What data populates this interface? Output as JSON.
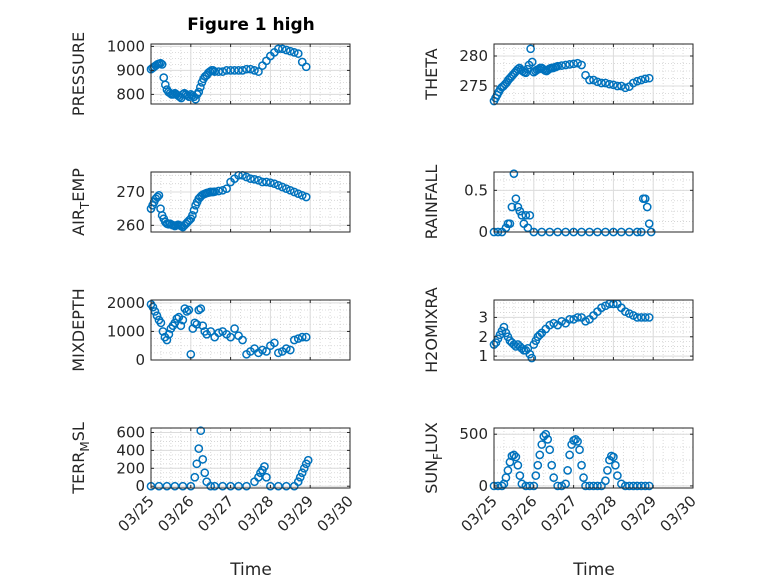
{
  "figure": {
    "title": "Figure 1 high",
    "xlabel": "Time",
    "x_ticks": [
      "03/25",
      "03/26",
      "03/27",
      "03/28",
      "03/29",
      "03/30"
    ],
    "marker_color": "#0072BD",
    "grid": true,
    "minor_grid": true
  },
  "chart_data": [
    {
      "type": "scatter",
      "title": "Figure 1 high",
      "ylabel": "PRESSURE",
      "xlim": [
        0,
        5
      ],
      "ylim": [
        760,
        1010
      ],
      "yticks": [
        800,
        900,
        1000
      ],
      "ytick_labels": [
        "800",
        "900",
        "1000"
      ],
      "x": [
        0.0,
        0.04,
        0.08,
        0.12,
        0.16,
        0.2,
        0.24,
        0.28,
        0.32,
        0.36,
        0.4,
        0.44,
        0.48,
        0.52,
        0.56,
        0.6,
        0.64,
        0.68,
        0.72,
        0.76,
        0.8,
        0.84,
        0.88,
        0.92,
        0.96,
        1.0,
        1.04,
        1.08,
        1.12,
        1.16,
        1.2,
        1.24,
        1.28,
        1.32,
        1.36,
        1.4,
        1.44,
        1.48,
        1.52,
        1.56,
        1.6,
        1.7,
        1.8,
        1.9,
        2.0,
        2.1,
        2.2,
        2.3,
        2.4,
        2.5,
        2.6,
        2.7,
        2.8,
        2.9,
        3.0,
        3.1,
        3.2,
        3.3,
        3.4,
        3.5,
        3.6,
        3.7,
        3.8,
        3.9
      ],
      "y": [
        905,
        910,
        915,
        920,
        925,
        928,
        930,
        925,
        870,
        840,
        820,
        810,
        805,
        800,
        800,
        805,
        800,
        795,
        790,
        785,
        800,
        805,
        800,
        795,
        790,
        800,
        795,
        790,
        780,
        800,
        810,
        830,
        850,
        865,
        875,
        880,
        890,
        895,
        900,
        900,
        895,
        895,
        895,
        900,
        900,
        900,
        900,
        900,
        905,
        905,
        900,
        895,
        920,
        940,
        960,
        975,
        990,
        990,
        985,
        980,
        975,
        970,
        935,
        915
      ]
    },
    {
      "type": "scatter",
      "ylabel": "THETA",
      "xlim": [
        0,
        5
      ],
      "ylim": [
        272,
        282
      ],
      "yticks": [
        275,
        280
      ],
      "ytick_labels": [
        "275",
        "280"
      ],
      "x": [
        0.0,
        0.04,
        0.08,
        0.12,
        0.16,
        0.2,
        0.24,
        0.28,
        0.32,
        0.36,
        0.4,
        0.44,
        0.48,
        0.52,
        0.56,
        0.6,
        0.64,
        0.68,
        0.72,
        0.76,
        0.8,
        0.84,
        0.88,
        0.92,
        0.96,
        1.0,
        1.04,
        1.08,
        1.12,
        1.16,
        1.2,
        1.24,
        1.28,
        1.32,
        1.36,
        1.4,
        1.44,
        1.48,
        1.52,
        1.56,
        1.6,
        1.7,
        1.8,
        1.9,
        2.0,
        2.1,
        2.2,
        2.3,
        2.4,
        2.5,
        2.6,
        2.7,
        2.8,
        2.9,
        3.0,
        3.1,
        3.2,
        3.3,
        3.4,
        3.5,
        3.6,
        3.7,
        3.8,
        3.9
      ],
      "y": [
        272.5,
        273,
        273.5,
        274,
        274.5,
        274.8,
        275,
        275.3,
        275.6,
        276,
        276.3,
        276.6,
        276.9,
        277.2,
        277.5,
        277.8,
        278,
        277.7,
        277.5,
        277.3,
        277.2,
        277.8,
        278.5,
        281.2,
        279,
        277.3,
        277.5,
        277.7,
        277.8,
        278,
        278,
        277.8,
        277.6,
        277.5,
        277.7,
        277.9,
        278,
        278,
        278.1,
        278.2,
        278.3,
        278.4,
        278.5,
        278.6,
        278.7,
        278.8,
        278.5,
        276.8,
        276,
        276,
        275.7,
        275.5,
        275.5,
        275.3,
        275.2,
        275,
        275,
        274.7,
        274.9,
        275.5,
        275.8,
        276,
        276.2,
        276.3
      ]
    },
    {
      "type": "scatter",
      "ylabel": "AIR_TEMP",
      "ylabel_display": [
        "AIR",
        "T",
        "EMP"
      ],
      "xlim": [
        0,
        5
      ],
      "ylim": [
        258,
        276
      ],
      "yticks": [
        260,
        270
      ],
      "ytick_labels": [
        "260",
        "270"
      ],
      "x": [
        0.0,
        0.04,
        0.08,
        0.12,
        0.16,
        0.2,
        0.24,
        0.28,
        0.32,
        0.36,
        0.4,
        0.44,
        0.48,
        0.52,
        0.56,
        0.6,
        0.64,
        0.68,
        0.72,
        0.76,
        0.8,
        0.84,
        0.88,
        0.92,
        0.96,
        1.0,
        1.04,
        1.08,
        1.12,
        1.16,
        1.2,
        1.24,
        1.28,
        1.32,
        1.36,
        1.4,
        1.44,
        1.48,
        1.52,
        1.56,
        1.6,
        1.7,
        1.8,
        1.9,
        2.0,
        2.1,
        2.2,
        2.3,
        2.4,
        2.5,
        2.6,
        2.7,
        2.8,
        2.9,
        3.0,
        3.1,
        3.2,
        3.3,
        3.4,
        3.5,
        3.6,
        3.7,
        3.8,
        3.9
      ],
      "y": [
        265,
        266,
        267,
        268,
        268.5,
        269,
        265,
        263,
        262,
        261,
        260.5,
        260.3,
        260.5,
        260.2,
        260,
        259.8,
        260,
        260.2,
        260,
        259.8,
        259.5,
        260,
        260.5,
        261,
        261.5,
        262,
        263,
        264.5,
        266,
        267,
        268,
        268.5,
        269,
        269.3,
        269.5,
        269.7,
        269.8,
        270,
        270,
        270,
        270.1,
        270.3,
        270.5,
        271,
        273,
        274,
        275,
        275,
        274.5,
        274,
        273.8,
        273.5,
        273,
        273,
        272.8,
        272.5,
        272,
        271.5,
        271,
        270.5,
        270,
        269.5,
        269,
        268.5
      ]
    },
    {
      "type": "scatter",
      "ylabel": "RAINFALL",
      "xlim": [
        0,
        5
      ],
      "ylim": [
        0,
        0.72
      ],
      "yticks": [
        0,
        0.5
      ],
      "ytick_labels": [
        "0",
        "0.5"
      ],
      "x": [
        0.0,
        0.1,
        0.2,
        0.3,
        0.35,
        0.4,
        0.45,
        0.5,
        0.55,
        0.6,
        0.65,
        0.7,
        0.75,
        0.8,
        0.85,
        0.9,
        1.0,
        1.2,
        1.4,
        1.6,
        1.8,
        2.0,
        2.2,
        2.4,
        2.6,
        2.8,
        3.0,
        3.2,
        3.4,
        3.6,
        3.7,
        3.75,
        3.8,
        3.85,
        3.9,
        3.95
      ],
      "y": [
        0,
        0,
        0,
        0.05,
        0.1,
        0.1,
        0.3,
        0.7,
        0.4,
        0.3,
        0.25,
        0.2,
        0.1,
        0.2,
        0.05,
        0.2,
        0,
        0,
        0,
        0,
        0,
        0,
        0,
        0,
        0,
        0,
        0,
        0,
        0,
        0,
        0,
        0.4,
        0.4,
        0.3,
        0.1,
        0
      ]
    },
    {
      "type": "scatter",
      "ylabel": "MIXDEPTH",
      "xlim": [
        0,
        5
      ],
      "ylim": [
        0,
        2100
      ],
      "yticks": [
        0,
        1000,
        2000
      ],
      "ytick_labels": [
        "0",
        "1000",
        "2000"
      ],
      "x": [
        0.0,
        0.05,
        0.1,
        0.15,
        0.2,
        0.25,
        0.3,
        0.35,
        0.4,
        0.45,
        0.5,
        0.55,
        0.6,
        0.65,
        0.7,
        0.75,
        0.8,
        0.85,
        0.9,
        0.95,
        1.0,
        1.05,
        1.1,
        1.15,
        1.2,
        1.25,
        1.3,
        1.35,
        1.4,
        1.5,
        1.6,
        1.7,
        1.8,
        1.9,
        2.0,
        2.1,
        2.2,
        2.3,
        2.4,
        2.5,
        2.6,
        2.7,
        2.8,
        2.9,
        3.0,
        3.1,
        3.2,
        3.3,
        3.4,
        3.5,
        3.6,
        3.7,
        3.8,
        3.9
      ],
      "y": [
        1950,
        1850,
        1700,
        1550,
        1400,
        1300,
        1000,
        800,
        700,
        900,
        1100,
        1200,
        1300,
        1450,
        1500,
        1200,
        1400,
        1800,
        1700,
        1750,
        200,
        1100,
        1300,
        1250,
        1750,
        1800,
        1200,
        1000,
        900,
        1000,
        800,
        950,
        1000,
        900,
        800,
        1100,
        850,
        700,
        200,
        300,
        400,
        250,
        350,
        300,
        500,
        600,
        250,
        300,
        400,
        350,
        700,
        750,
        800,
        800
      ]
    },
    {
      "type": "scatter",
      "ylabel": "H2OMIXRA",
      "xlim": [
        0,
        5
      ],
      "ylim": [
        0.8,
        3.9
      ],
      "yticks": [
        1,
        2,
        3
      ],
      "ytick_labels": [
        "1",
        "2",
        "3"
      ],
      "x": [
        0.0,
        0.05,
        0.1,
        0.15,
        0.2,
        0.25,
        0.3,
        0.35,
        0.4,
        0.45,
        0.5,
        0.55,
        0.6,
        0.65,
        0.7,
        0.75,
        0.8,
        0.85,
        0.9,
        0.95,
        1.0,
        1.05,
        1.1,
        1.15,
        1.2,
        1.3,
        1.4,
        1.5,
        1.6,
        1.7,
        1.8,
        1.9,
        2.0,
        2.1,
        2.2,
        2.3,
        2.4,
        2.5,
        2.6,
        2.7,
        2.8,
        2.9,
        3.0,
        3.1,
        3.2,
        3.3,
        3.4,
        3.5,
        3.6,
        3.7,
        3.8,
        3.9
      ],
      "y": [
        1.6,
        1.7,
        1.9,
        2.1,
        2.3,
        2.5,
        2.2,
        2,
        1.8,
        1.7,
        1.6,
        1.5,
        1.6,
        1.5,
        1.4,
        1.3,
        1.3,
        1.4,
        1.1,
        0.9,
        1.6,
        1.8,
        2.0,
        2.1,
        2.2,
        2.4,
        2.6,
        2.7,
        2.6,
        2.8,
        2.7,
        2.9,
        2.9,
        3.0,
        3.0,
        2.8,
        2.9,
        3.1,
        3.3,
        3.5,
        3.6,
        3.7,
        3.7,
        3.7,
        3.5,
        3.3,
        3.2,
        3.1,
        3.0,
        3.0,
        3.0,
        3.0
      ]
    },
    {
      "type": "scatter",
      "ylabel": "TERR_MSL",
      "ylabel_display": [
        "TERR",
        "M",
        "SL"
      ],
      "xlim": [
        0,
        5
      ],
      "ylim": [
        -20,
        650
      ],
      "yticks": [
        0,
        200,
        400,
        600
      ],
      "ytick_labels": [
        "0",
        "200",
        "400",
        "600"
      ],
      "x": [
        0.0,
        0.2,
        0.4,
        0.6,
        0.8,
        1.0,
        1.1,
        1.15,
        1.2,
        1.25,
        1.3,
        1.35,
        1.4,
        1.5,
        1.6,
        1.8,
        2.0,
        2.2,
        2.4,
        2.6,
        2.7,
        2.75,
        2.8,
        2.85,
        2.9,
        3.0,
        3.2,
        3.4,
        3.6,
        3.7,
        3.75,
        3.8,
        3.85,
        3.9,
        3.95
      ],
      "y": [
        0,
        0,
        0,
        0,
        0,
        0,
        100,
        250,
        420,
        620,
        300,
        150,
        50,
        0,
        0,
        0,
        0,
        0,
        0,
        50,
        100,
        150,
        180,
        220,
        100,
        0,
        0,
        0,
        0,
        50,
        100,
        150,
        200,
        250,
        290
      ]
    },
    {
      "type": "scatter",
      "ylabel": "SUN_FLUX",
      "ylabel_display": [
        "SUN",
        "F",
        "LUX"
      ],
      "xlim": [
        0,
        5
      ],
      "ylim": [
        -20,
        560
      ],
      "yticks": [
        0,
        500
      ],
      "ytick_labels": [
        "0",
        "500"
      ],
      "x": [
        0.0,
        0.1,
        0.2,
        0.25,
        0.3,
        0.35,
        0.4,
        0.45,
        0.5,
        0.55,
        0.6,
        0.65,
        0.7,
        0.8,
        0.9,
        1.0,
        1.05,
        1.1,
        1.15,
        1.2,
        1.25,
        1.3,
        1.35,
        1.4,
        1.45,
        1.5,
        1.6,
        1.7,
        1.8,
        1.85,
        1.9,
        1.95,
        2.0,
        2.05,
        2.1,
        2.15,
        2.2,
        2.25,
        2.3,
        2.4,
        2.5,
        2.6,
        2.7,
        2.8,
        2.85,
        2.9,
        2.95,
        3.0,
        3.05,
        3.1,
        3.2,
        3.3,
        3.4,
        3.5,
        3.6,
        3.7,
        3.8,
        3.9
      ],
      "y": [
        0,
        0,
        0,
        20,
        80,
        150,
        230,
        290,
        300,
        280,
        200,
        100,
        20,
        0,
        0,
        0,
        100,
        200,
        300,
        400,
        480,
        500,
        450,
        350,
        200,
        80,
        0,
        0,
        20,
        150,
        300,
        400,
        440,
        450,
        430,
        350,
        200,
        80,
        0,
        0,
        0,
        0,
        0,
        50,
        150,
        250,
        290,
        280,
        200,
        100,
        20,
        0,
        0,
        0,
        0,
        0,
        0,
        0
      ]
    }
  ]
}
